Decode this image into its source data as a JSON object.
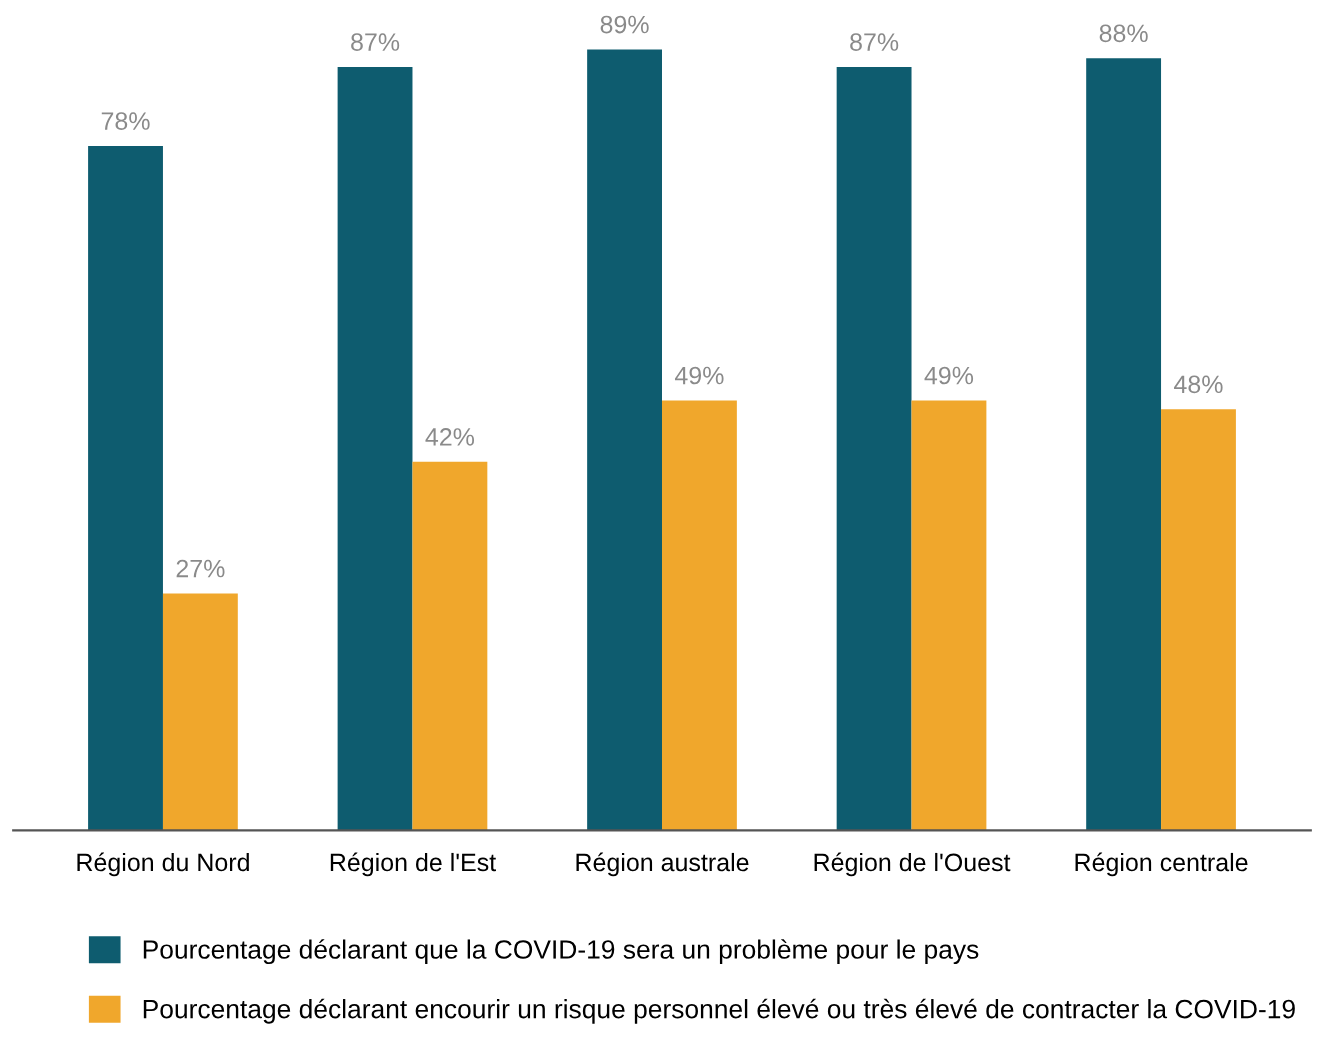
{
  "chart_data": {
    "type": "bar",
    "categories": [
      "Région du Nord",
      "Région de l'Est",
      "Région australe",
      "Région de l'Ouest",
      "Région centrale"
    ],
    "series": [
      {
        "name": "Pourcentage déclarant que la COVID-19 sera un problème pour le pays",
        "color": "#0e5c6f",
        "values": [
          78,
          87,
          89,
          87,
          88
        ],
        "value_labels": [
          "78%",
          "87%",
          "89%",
          "87%",
          "88%"
        ]
      },
      {
        "name": "Pourcentage déclarant encourir un risque personnel élevé ou très élevé de contracter la COVID-19",
        "color": "#f0a72c",
        "values": [
          27,
          42,
          49,
          49,
          48
        ],
        "value_labels": [
          "27%",
          "42%",
          "49%",
          "49%",
          "48%"
        ]
      }
    ],
    "tick_labels": "x",
    "legend": "bottom"
  }
}
